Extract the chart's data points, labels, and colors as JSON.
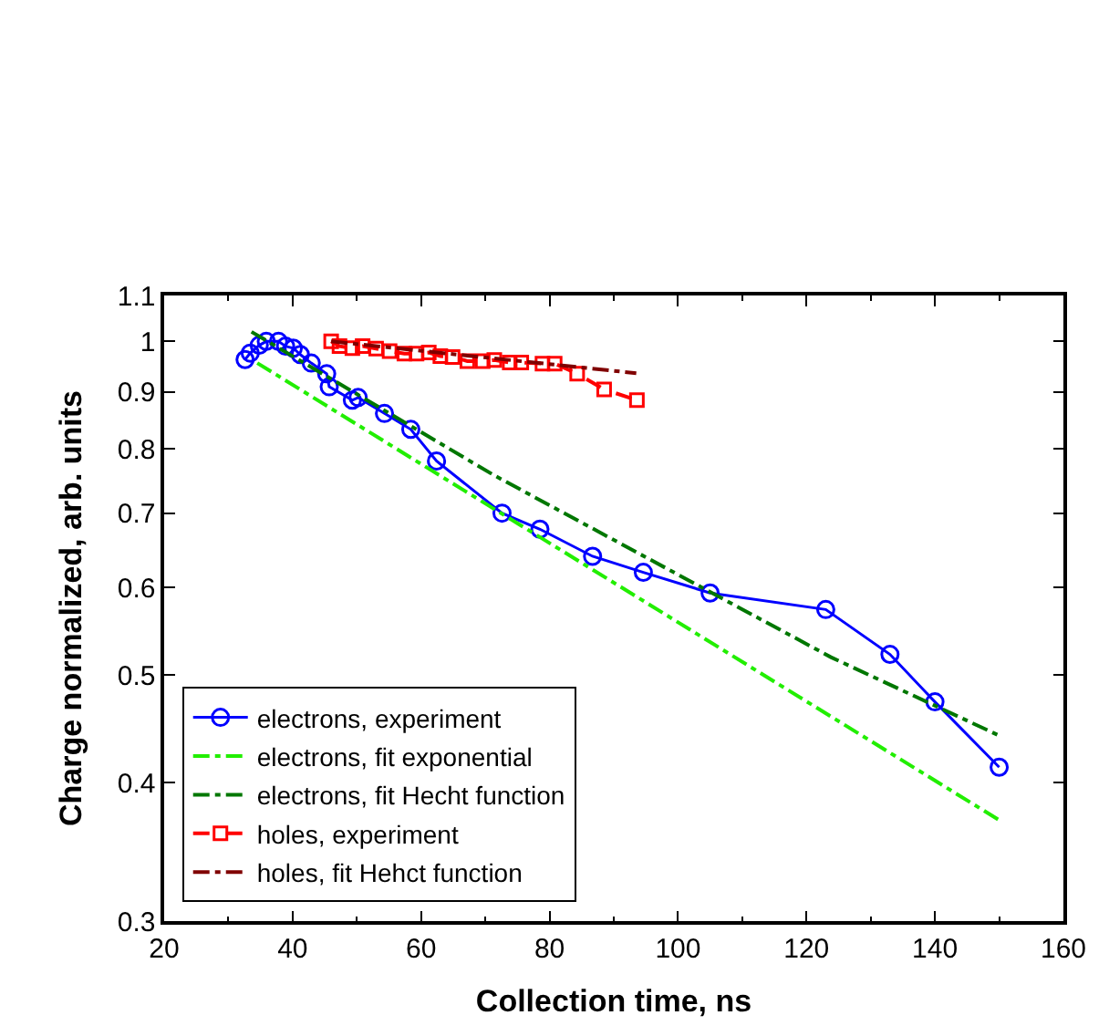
{
  "chart_data": {
    "type": "line",
    "xlabel": "Collection time, ns",
    "ylabel": "Charge normalized, arb. units",
    "log": "y",
    "legend": "bottom left",
    "xlim": [
      20,
      160
    ],
    "xticks": [
      20,
      40,
      60,
      80,
      100,
      120,
      140,
      160
    ],
    "ylim": [
      0.3,
      1.1
    ],
    "yticks": [
      0.3,
      0.4,
      0.5,
      0.6,
      0.7,
      0.8,
      0.9,
      1,
      1.1
    ],
    "series": [
      {
        "name": "electrons, experiment",
        "color": "#0000ff",
        "marker": "circle",
        "line_style": "solid",
        "x": [
          32.6,
          33.4,
          34.8,
          35.9,
          37.8,
          38.9,
          40.1,
          41.2,
          42.9,
          45.3,
          45.7,
          49.3,
          50.2,
          54.3,
          58.4,
          62.4,
          72.6,
          78.5,
          86.7,
          94.6,
          105,
          123,
          133,
          140,
          150
        ],
        "values": [
          0.963,
          0.976,
          0.992,
          1.0,
          1.0,
          0.99,
          0.986,
          0.973,
          0.956,
          0.935,
          0.91,
          0.885,
          0.89,
          0.861,
          0.833,
          0.78,
          0.7,
          0.677,
          0.64,
          0.619,
          0.593,
          0.573,
          0.522,
          0.473,
          0.413
        ]
      },
      {
        "name": "electrons, fit exponential",
        "color": "#22ee00",
        "marker": "none",
        "line_style": "dashdot",
        "x": [
          34.5,
          150
        ],
        "values": [
          0.956,
          0.37
        ]
      },
      {
        "name": "electrons, fit Hecht function",
        "color": "#007700",
        "marker": "none",
        "line_style": "dashdot",
        "x": [
          33.6,
          71.4,
          123.8,
          150
        ],
        "values": [
          1.02,
          0.757,
          0.519,
          0.441
        ]
      },
      {
        "name": "holes, experiment",
        "color": "#ff0000",
        "marker": "square",
        "line_style": "dashed",
        "x": [
          46.0,
          47.3,
          49.3,
          50.9,
          53.0,
          55.1,
          57.4,
          59.3,
          61.2,
          63.0,
          64.9,
          67.2,
          69.6,
          71.4,
          73.8,
          75.6,
          78.9,
          80.8,
          84.3,
          88.5,
          93.6
        ],
        "values": [
          1.0,
          0.99,
          0.986,
          0.99,
          0.985,
          0.98,
          0.975,
          0.975,
          0.977,
          0.97,
          0.968,
          0.96,
          0.96,
          0.962,
          0.957,
          0.957,
          0.955,
          0.955,
          0.935,
          0.905,
          0.885
        ]
      },
      {
        "name": "holes, fit Hehct function",
        "color": "#800000",
        "marker": "none",
        "line_style": "dashdot",
        "x": [
          46.0,
          93.5
        ],
        "values": [
          1.0,
          0.936
        ]
      }
    ]
  }
}
